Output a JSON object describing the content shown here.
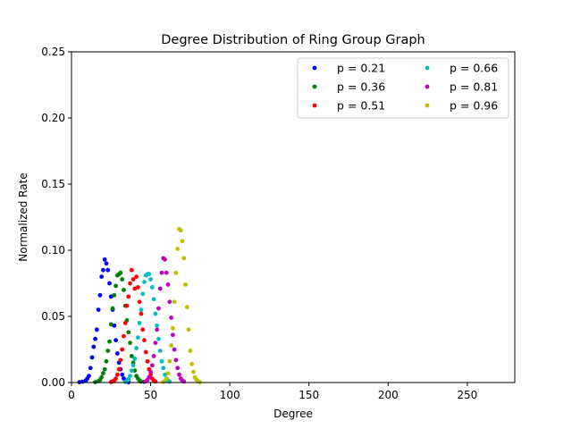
{
  "chart_data": {
    "type": "scatter",
    "title": "Degree Distribution of Ring Group Graph",
    "xlabel": "Degree",
    "ylabel": "Normalized Rate",
    "xlim": [
      0,
      280
    ],
    "ylim": [
      0,
      0.25
    ],
    "xticks": [
      0,
      50,
      100,
      150,
      200,
      250
    ],
    "xtick_labels": [
      "0",
      "50",
      "100",
      "150",
      "200",
      "250"
    ],
    "yticks": [
      0,
      0.05,
      0.1,
      0.15,
      0.2,
      0.25
    ],
    "ytick_labels": [
      "0.00",
      "0.05",
      "0.10",
      "0.15",
      "0.20",
      "0.25"
    ],
    "grid": false,
    "legend_position": "top-right",
    "legend_columns": 2,
    "series": [
      {
        "name": "p = 0.21",
        "color": "#0000ff",
        "points": [
          [
            5,
            0.0003
          ],
          [
            7,
            0.0006
          ],
          [
            9,
            0.0015
          ],
          [
            10,
            0.003
          ],
          [
            11,
            0.005
          ],
          [
            12,
            0.011
          ],
          [
            13,
            0.019
          ],
          [
            14,
            0.027
          ],
          [
            15,
            0.033
          ],
          [
            16,
            0.04
          ],
          [
            17,
            0.055
          ],
          [
            18,
            0.066
          ],
          [
            19,
            0.08
          ],
          [
            20,
            0.085
          ],
          [
            21,
            0.093
          ],
          [
            22,
            0.09
          ],
          [
            23,
            0.085
          ],
          [
            24,
            0.075
          ],
          [
            25,
            0.065
          ],
          [
            26,
            0.055
          ],
          [
            27,
            0.043
          ],
          [
            28,
            0.032
          ],
          [
            29,
            0.022
          ],
          [
            30,
            0.015
          ],
          [
            31,
            0.01
          ],
          [
            32,
            0.006
          ],
          [
            33,
            0.003
          ],
          [
            34,
            0.0015
          ],
          [
            35,
            0.0007
          ],
          [
            36,
            0.0003
          ]
        ]
      },
      {
        "name": "p = 0.36",
        "color": "#008000",
        "points": [
          [
            15,
            0.0003
          ],
          [
            17,
            0.001
          ],
          [
            18,
            0.002
          ],
          [
            19,
            0.004
          ],
          [
            20,
            0.007
          ],
          [
            21,
            0.01
          ],
          [
            22,
            0.016
          ],
          [
            23,
            0.024
          ],
          [
            24,
            0.031
          ],
          [
            25,
            0.044
          ],
          [
            26,
            0.056
          ],
          [
            27,
            0.066
          ],
          [
            28,
            0.073
          ],
          [
            29,
            0.081
          ],
          [
            30,
            0.082
          ],
          [
            31,
            0.083
          ],
          [
            32,
            0.078
          ],
          [
            33,
            0.07
          ],
          [
            34,
            0.058
          ],
          [
            35,
            0.047
          ],
          [
            36,
            0.038
          ],
          [
            37,
            0.03
          ],
          [
            38,
            0.02
          ],
          [
            39,
            0.015
          ],
          [
            40,
            0.009
          ],
          [
            41,
            0.005
          ],
          [
            42,
            0.003
          ],
          [
            43,
            0.0015
          ],
          [
            44,
            0.0006
          ]
        ]
      },
      {
        "name": "p = 0.51",
        "color": "#ff0000",
        "points": [
          [
            25,
            0.0004
          ],
          [
            26,
            0.0008
          ],
          [
            27,
            0.0015
          ],
          [
            28,
            0.003
          ],
          [
            29,
            0.006
          ],
          [
            30,
            0.01
          ],
          [
            31,
            0.017
          ],
          [
            32,
            0.025
          ],
          [
            33,
            0.035
          ],
          [
            34,
            0.045
          ],
          [
            35,
            0.058
          ],
          [
            36,
            0.065
          ],
          [
            37,
            0.075
          ],
          [
            38,
            0.085
          ],
          [
            39,
            0.078
          ],
          [
            40,
            0.071
          ],
          [
            41,
            0.08
          ],
          [
            42,
            0.072
          ],
          [
            43,
            0.061
          ],
          [
            44,
            0.052
          ],
          [
            45,
            0.04
          ],
          [
            46,
            0.032
          ],
          [
            47,
            0.023
          ],
          [
            48,
            0.016
          ],
          [
            49,
            0.01
          ],
          [
            50,
            0.006
          ],
          [
            51,
            0.003
          ],
          [
            52,
            0.0015
          ],
          [
            53,
            0.0007
          ]
        ]
      },
      {
        "name": "p = 0.66",
        "color": "#00bfbf",
        "points": [
          [
            34,
            0.0005
          ],
          [
            35,
            0.001
          ],
          [
            36,
            0.0025
          ],
          [
            37,
            0.005
          ],
          [
            38,
            0.009
          ],
          [
            39,
            0.013
          ],
          [
            40,
            0.018
          ],
          [
            41,
            0.026
          ],
          [
            42,
            0.034
          ],
          [
            43,
            0.045
          ],
          [
            44,
            0.055
          ],
          [
            45,
            0.067
          ],
          [
            46,
            0.076
          ],
          [
            47,
            0.081
          ],
          [
            48,
            0.082
          ],
          [
            49,
            0.082
          ],
          [
            50,
            0.078
          ],
          [
            51,
            0.072
          ],
          [
            52,
            0.063
          ],
          [
            53,
            0.052
          ],
          [
            54,
            0.043
          ],
          [
            55,
            0.033
          ],
          [
            56,
            0.024
          ],
          [
            57,
            0.016
          ],
          [
            58,
            0.011
          ],
          [
            59,
            0.006
          ],
          [
            60,
            0.003
          ],
          [
            61,
            0.0015
          ],
          [
            62,
            0.0006
          ]
        ]
      },
      {
        "name": "p = 0.81",
        "color": "#bf00bf",
        "points": [
          [
            46,
            0.0005
          ],
          [
            47,
            0.001
          ],
          [
            48,
            0.002
          ],
          [
            49,
            0.004
          ],
          [
            50,
            0.008
          ],
          [
            51,
            0.013
          ],
          [
            52,
            0.02
          ],
          [
            53,
            0.03
          ],
          [
            54,
            0.04
          ],
          [
            55,
            0.056
          ],
          [
            56,
            0.071
          ],
          [
            57,
            0.083
          ],
          [
            58,
            0.094
          ],
          [
            59,
            0.093
          ],
          [
            60,
            0.083
          ],
          [
            61,
            0.074
          ],
          [
            62,
            0.061
          ],
          [
            63,
            0.049
          ],
          [
            64,
            0.036
          ],
          [
            65,
            0.025
          ],
          [
            66,
            0.017
          ],
          [
            67,
            0.011
          ],
          [
            68,
            0.006
          ],
          [
            69,
            0.003
          ],
          [
            70,
            0.0015
          ],
          [
            71,
            0.0007
          ]
        ]
      },
      {
        "name": "p = 0.96",
        "color": "#bfbf00",
        "points": [
          [
            58,
            0.0005
          ],
          [
            59,
            0.001
          ],
          [
            60,
            0.003
          ],
          [
            61,
            0.007
          ],
          [
            62,
            0.016
          ],
          [
            63,
            0.028
          ],
          [
            64,
            0.041
          ],
          [
            65,
            0.061
          ],
          [
            66,
            0.083
          ],
          [
            67,
            0.101
          ],
          [
            68,
            0.116
          ],
          [
            69,
            0.115
          ],
          [
            70,
            0.107
          ],
          [
            71,
            0.094
          ],
          [
            72,
            0.074
          ],
          [
            73,
            0.057
          ],
          [
            74,
            0.04
          ],
          [
            75,
            0.024
          ],
          [
            76,
            0.014
          ],
          [
            77,
            0.008
          ],
          [
            78,
            0.004
          ],
          [
            79,
            0.002
          ],
          [
            80,
            0.0008
          ],
          [
            81,
            0.0003
          ]
        ]
      }
    ]
  }
}
